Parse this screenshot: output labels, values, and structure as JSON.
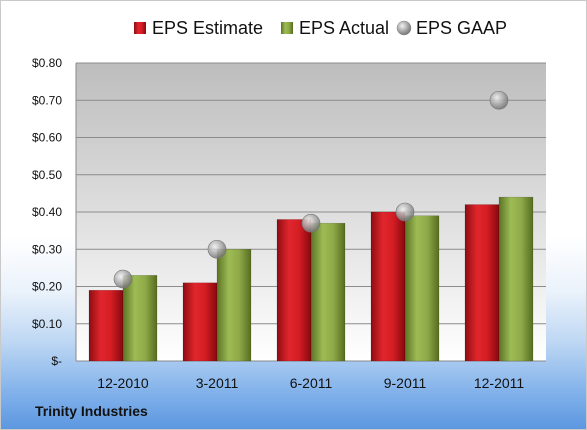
{
  "chart_data": {
    "type": "bar",
    "categories": [
      "12-2010",
      "3-2011",
      "6-2011",
      "9-2011",
      "12-2011"
    ],
    "series": [
      {
        "name": "EPS Estimate",
        "kind": "bar",
        "color": "#c0141b",
        "values": [
          0.19,
          0.21,
          0.38,
          0.4,
          0.42
        ]
      },
      {
        "name": "EPS Actual",
        "kind": "bar",
        "color": "#7f9a3a",
        "values": [
          0.23,
          0.3,
          0.37,
          0.39,
          0.44
        ]
      },
      {
        "name": "EPS GAAP",
        "kind": "marker",
        "color": "#9a9a9a",
        "values": [
          0.22,
          0.3,
          0.37,
          0.4,
          0.7
        ]
      }
    ],
    "yticks": [
      {
        "value": 0,
        "label": "$-"
      },
      {
        "value": 0.1,
        "label": "$0.10"
      },
      {
        "value": 0.2,
        "label": "$0.20"
      },
      {
        "value": 0.3,
        "label": "$0.30"
      },
      {
        "value": 0.4,
        "label": "$0.40"
      },
      {
        "value": 0.5,
        "label": "$0.50"
      },
      {
        "value": 0.6,
        "label": "$0.60"
      },
      {
        "value": 0.7,
        "label": "$0.70"
      },
      {
        "value": 0.8,
        "label": "$0.80"
      }
    ],
    "ylim": [
      0,
      0.8
    ],
    "grid": true,
    "legend_position": "top",
    "source": "Trinity Industries"
  }
}
